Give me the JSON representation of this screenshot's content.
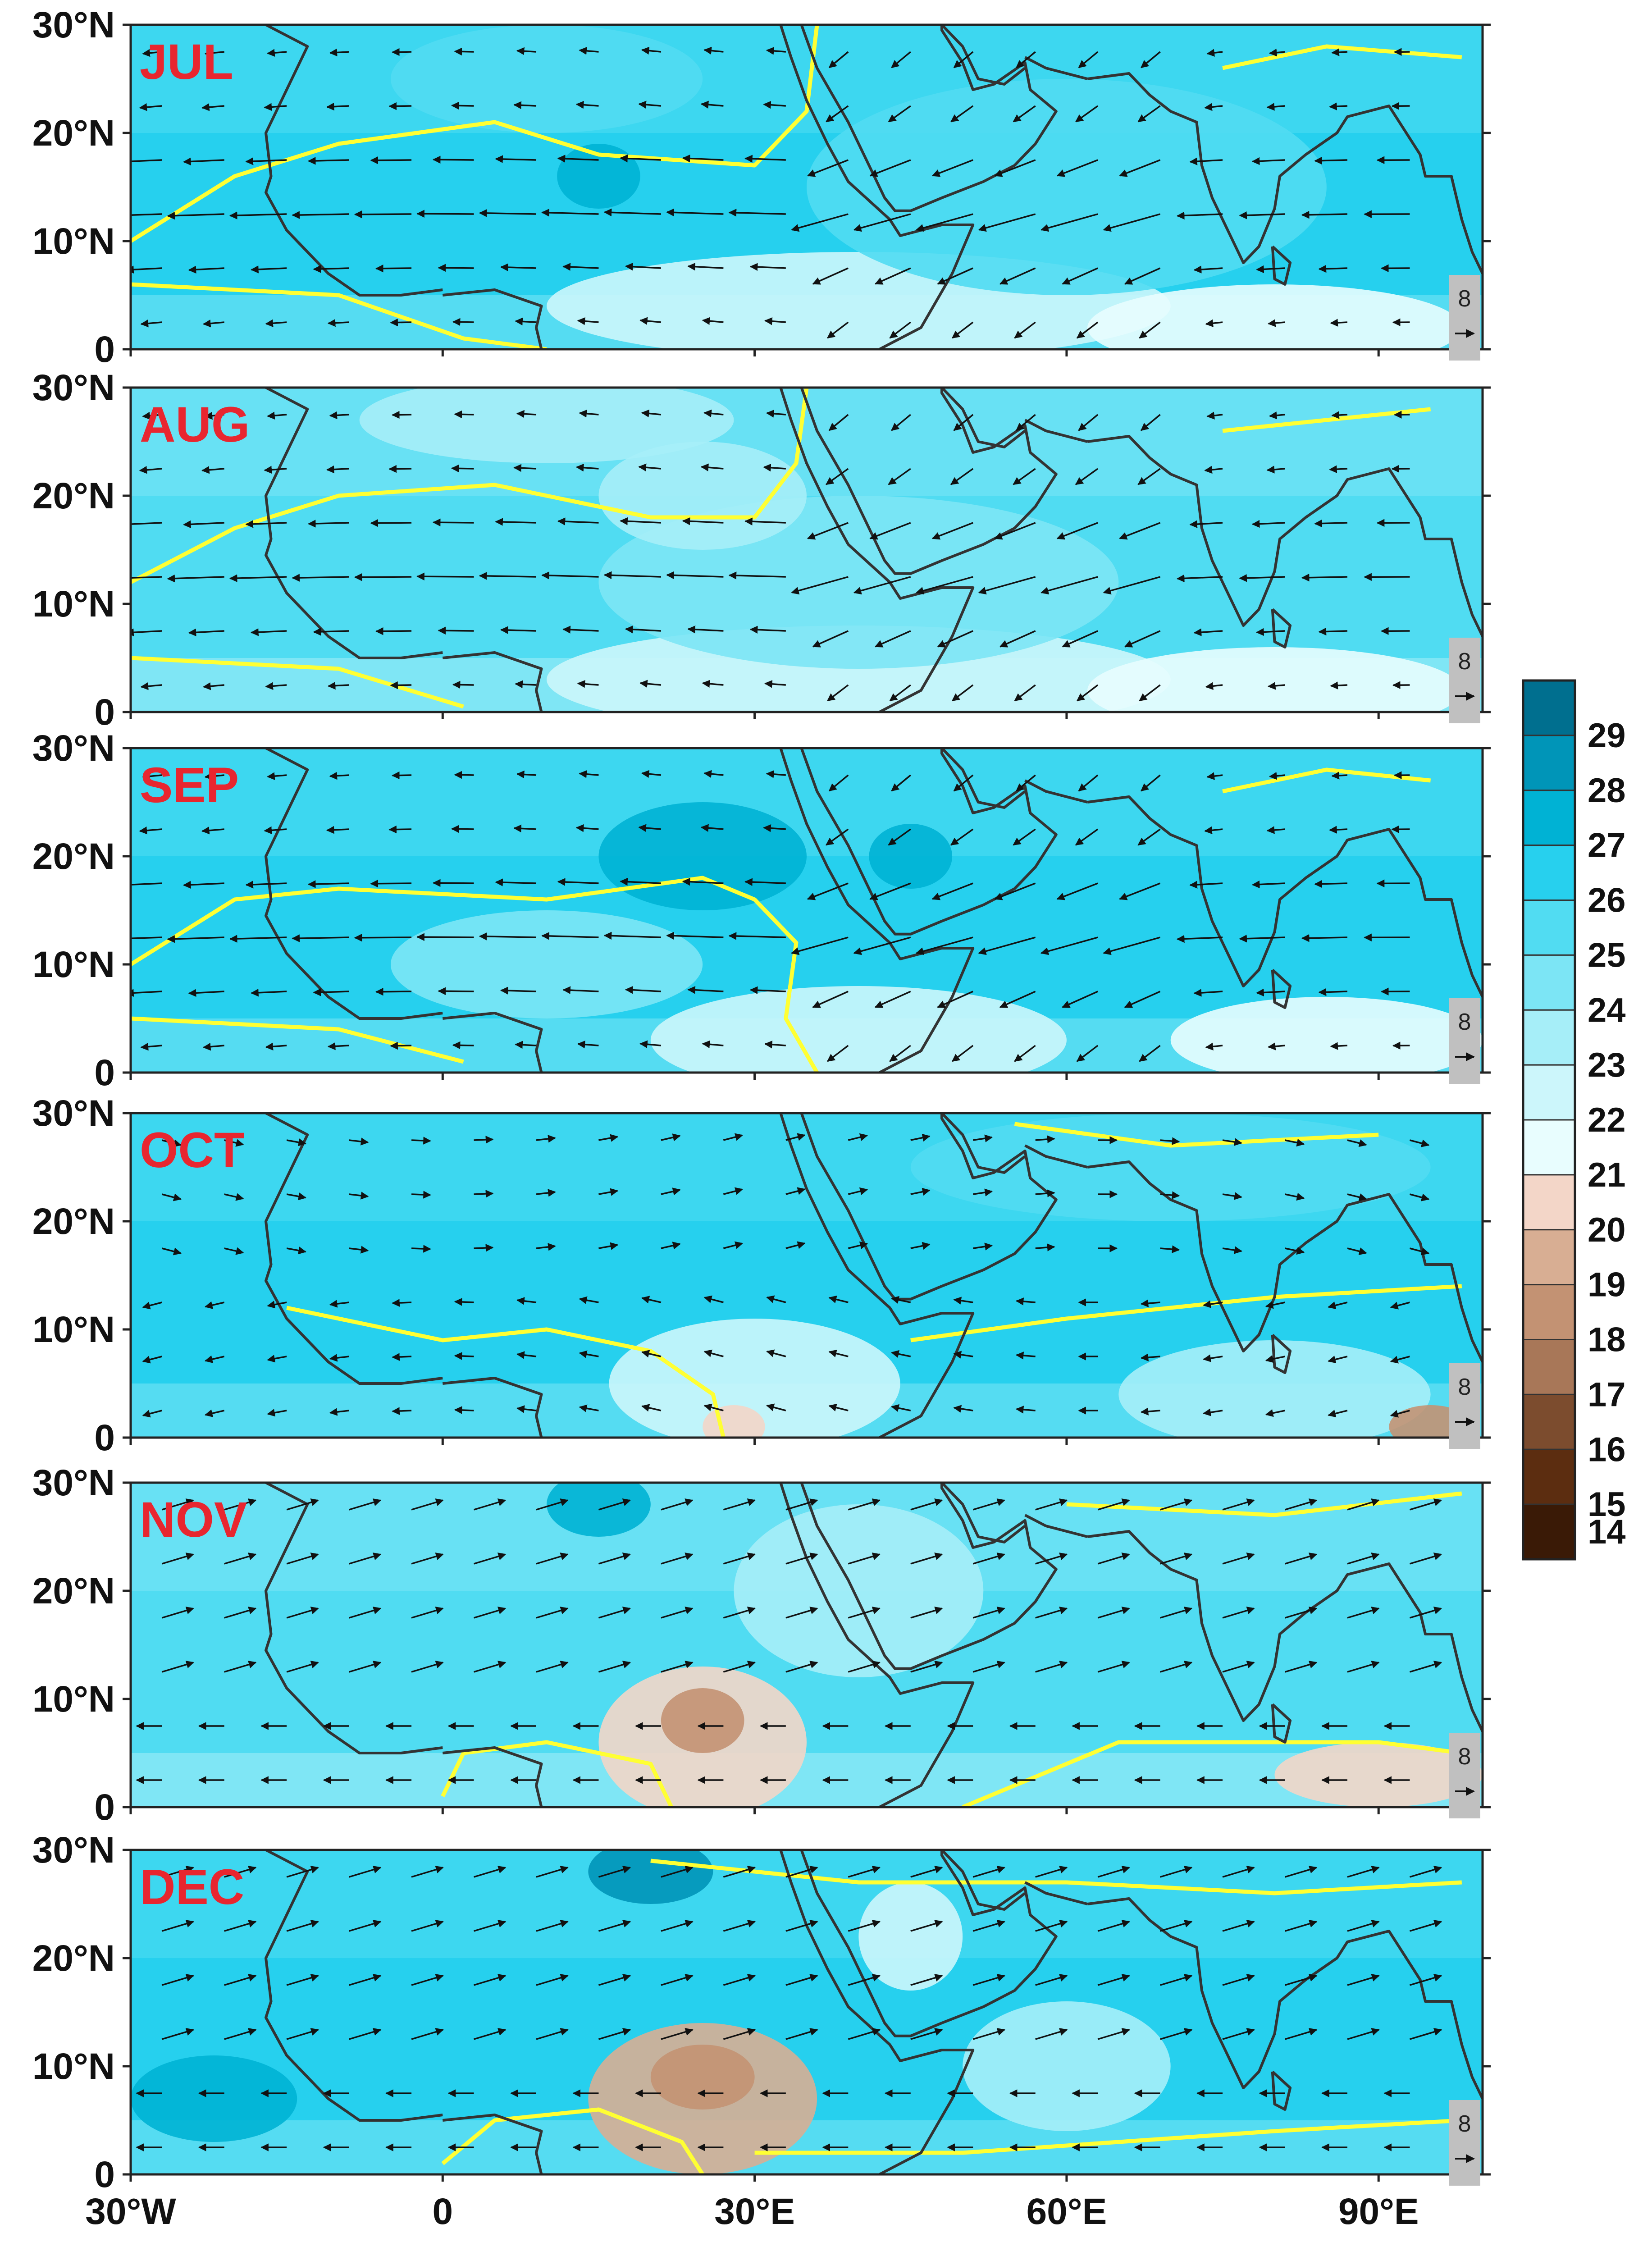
{
  "axes": {
    "lat_ticks": [
      "30°N",
      "20°N",
      "10°N",
      "0"
    ],
    "lat_values": [
      30,
      20,
      10,
      0
    ],
    "lon_ticks": [
      "30°W",
      "0",
      "30°E",
      "60°E",
      "90°E"
    ],
    "lon_values": [
      -30,
      0,
      30,
      60,
      90
    ],
    "lon_range": [
      -30,
      100
    ],
    "lat_range": [
      0,
      30
    ]
  },
  "panels": [
    {
      "month": "JUL",
      "ref_vector": "8"
    },
    {
      "month": "AUG",
      "ref_vector": "8"
    },
    {
      "month": "SEP",
      "ref_vector": "8"
    },
    {
      "month": "OCT",
      "ref_vector": "8"
    },
    {
      "month": "NOV",
      "ref_vector": "8"
    },
    {
      "month": "DEC",
      "ref_vector": "8"
    }
  ],
  "colorbar": {
    "labels": [
      "29",
      "28",
      "27",
      "26",
      "25",
      "24",
      "23",
      "22",
      "21",
      "20",
      "19",
      "18",
      "17",
      "16",
      "15",
      "14"
    ],
    "colors": [
      "#006f8f",
      "#0095b8",
      "#00b2d4",
      "#27d0ee",
      "#51dcf2",
      "#7ce5f5",
      "#a6eef8",
      "#ccf6fb",
      "#e8fdfe",
      "#f3d6c8",
      "#d8ae93",
      "#c39273",
      "#a87758",
      "#7c4c2e",
      "#5c2d10",
      "#3a1a06"
    ]
  },
  "colors": {
    "coast": "#333333",
    "contour": "#ffff33",
    "label_red": "#e8262f",
    "arrow": "#111111",
    "ref_box": "#c0c0c0"
  }
}
